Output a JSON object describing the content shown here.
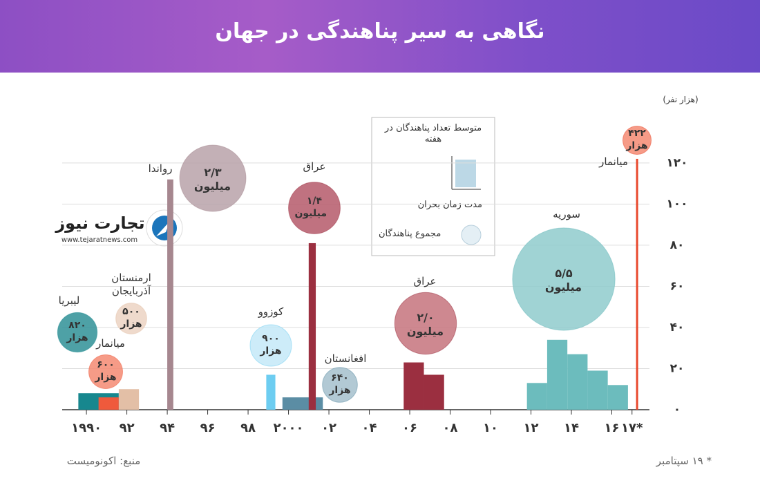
{
  "header": {
    "title": "نگاهی به سیر پناهندگی در جهان"
  },
  "logo": {
    "name": "تجارت نیوز",
    "url": "www.tejaratnews.com"
  },
  "legend_box": {
    "bar_text": "متوسط تعداد پناهندگان در هفته",
    "axis_text": "مدت زمان بحران",
    "bubble_text": "مجموع پناهندگان"
  },
  "footer": {
    "source": "منبع: اکونومیست",
    "note": "* ۱۹ سپتامبر"
  },
  "chart_data": {
    "type": "bar",
    "y_label": "(هزار نفر)",
    "xlim": [
      1988.8,
      2018
    ],
    "ylim": [
      0,
      125
    ],
    "xticks": [
      {
        "value": 1990,
        "label": "۱۹۹۰"
      },
      {
        "value": 1992,
        "label": "۹۲"
      },
      {
        "value": 1994,
        "label": "۹۴"
      },
      {
        "value": 1996,
        "label": "۹۶"
      },
      {
        "value": 1998,
        "label": "۹۸"
      },
      {
        "value": 2000,
        "label": "۲۰۰۰"
      },
      {
        "value": 2002,
        "label": "۰۲"
      },
      {
        "value": 2004,
        "label": "۰۴"
      },
      {
        "value": 2006,
        "label": "۰۶"
      },
      {
        "value": 2008,
        "label": "۰۸"
      },
      {
        "value": 2010,
        "label": "۱۰"
      },
      {
        "value": 2012,
        "label": "۱۲"
      },
      {
        "value": 2014,
        "label": "۱۴"
      },
      {
        "value": 2016,
        "label": "۱۶"
      },
      {
        "value": 2017,
        "label": "۱۷*"
      }
    ],
    "yticks": [
      {
        "value": 0,
        "label": "۰"
      },
      {
        "value": 20,
        "label": "۲۰"
      },
      {
        "value": 40,
        "label": "۴۰"
      },
      {
        "value": 60,
        "label": "۶۰"
      },
      {
        "value": 80,
        "label": "۸۰"
      },
      {
        "value": 100,
        "label": "۱۰۰"
      },
      {
        "value": 120,
        "label": "۱۲۰"
      }
    ],
    "grid": true,
    "series": [
      {
        "name": "لیبریا",
        "color": "#17878e",
        "bubble_color": "#2f9097",
        "x": [
          [
            1989.6,
            1991.6
          ]
        ],
        "values": [
          8
        ],
        "total": 820,
        "total_label": "۸۲۰ هزار"
      },
      {
        "name": "میانمار",
        "color": "#ef5a3c",
        "bubble_color": "#f48a72",
        "x": [
          [
            1990.6,
            1991.6
          ]
        ],
        "values": [
          6
        ],
        "total": 600,
        "total_label": "۶۰۰ هزار"
      },
      {
        "name": "ارمنستان آذربایجان",
        "color": "#e3bfa6",
        "bubble_color": "#ecd3c3",
        "x": [
          [
            1991.6,
            1992.6
          ]
        ],
        "values": [
          10
        ],
        "total": 500,
        "total_label": "۵۰۰ هزار"
      },
      {
        "name": "رواندا",
        "color": "#a6878f",
        "bubble_color": "#b9a2a9",
        "x": [
          [
            1994.0,
            1994.3
          ]
        ],
        "values": [
          112
        ],
        "total": 2300,
        "total_label": "۲/۳ میلیون"
      },
      {
        "name": "کوزوو",
        "color": "#6dcdf1",
        "bubble_color": "#c4e9f8",
        "x": [
          [
            1998.9,
            1999.35
          ]
        ],
        "values": [
          17
        ],
        "total": 900,
        "total_label": "۹۰۰ هزار"
      },
      {
        "name": "افغانستان",
        "color": "#5b8da4",
        "bubble_color": "#a4c0cd",
        "x": [
          [
            1999.7,
            2001.7
          ]
        ],
        "values": [
          6
        ],
        "total": 640,
        "total_label": "۶۴۰ هزار"
      },
      {
        "name": "عراق",
        "color": "#9b2f40",
        "bubble_color": "#b5596a",
        "x": [
          [
            2001.0,
            2001.35
          ]
        ],
        "values": [
          81
        ],
        "total": 1400,
        "total_label": "۱/۴ میلیون"
      },
      {
        "name": "عراق",
        "color": "#9b2f40",
        "bubble_color": "#c5737d",
        "x": [
          [
            2005.7,
            2006.7
          ],
          [
            2006.7,
            2007.7
          ]
        ],
        "values": [
          23,
          17
        ],
        "total": 2000,
        "total_label": "۲/۰ میلیون"
      },
      {
        "name": "سوریه",
        "color": "#6cbcbd",
        "bubble_color": "#8fcbcc",
        "x": [
          [
            2011.8,
            2012.8
          ],
          [
            2012.8,
            2013.8
          ],
          [
            2013.8,
            2014.8
          ],
          [
            2014.8,
            2015.8
          ],
          [
            2015.8,
            2016.8
          ]
        ],
        "values": [
          13,
          34,
          27,
          19,
          12
        ],
        "total": 5500,
        "total_label": "۵/۵ میلیون"
      },
      {
        "name": "میانمار",
        "color": "#e8482c",
        "bubble_color": "#f48a72",
        "x": [
          [
            2017.2,
            2017.3
          ]
        ],
        "values": [
          122
        ],
        "total": 422,
        "total_label": "۴۲۲ هزار"
      }
    ]
  }
}
